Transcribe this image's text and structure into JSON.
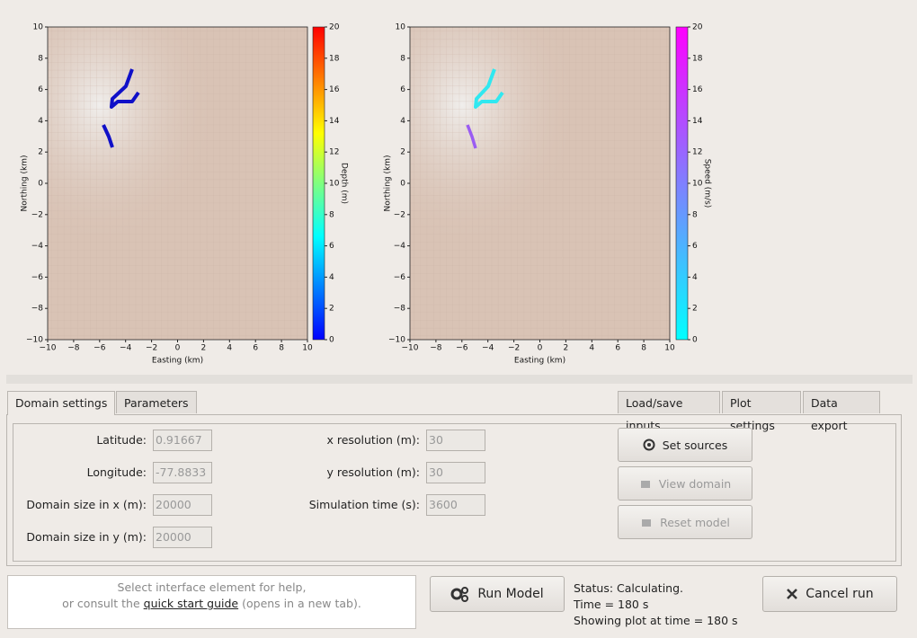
{
  "plots": [
    {
      "xlabel": "Easting (km)",
      "ylabel": "Northing (km)",
      "colorbar_label": "Depth (m)",
      "xlim": [
        -10,
        10
      ],
      "ylim": [
        -10,
        10
      ],
      "xticks": [
        {
          "value": -10,
          "label": "−10"
        },
        {
          "value": -8,
          "label": "−8"
        },
        {
          "value": -6,
          "label": "−6"
        },
        {
          "value": -4,
          "label": "−4"
        },
        {
          "value": -2,
          "label": "−2"
        },
        0,
        2,
        4,
        6,
        8,
        10
      ],
      "yticks": [
        {
          "value": -10,
          "label": "−10"
        },
        {
          "value": -8,
          "label": "−8"
        },
        {
          "value": -6,
          "label": "−6"
        },
        {
          "value": -4,
          "label": "−4"
        },
        {
          "value": -2,
          "label": "−2"
        },
        0,
        2,
        4,
        6,
        8,
        10
      ],
      "clim": [
        0,
        20
      ],
      "cticks": [
        0,
        2,
        4,
        6,
        8,
        10,
        12,
        14,
        16,
        18,
        20
      ]
    },
    {
      "xlabel": "Easting (km)",
      "ylabel": "Northing (km)",
      "colorbar_label": "Speed (m/s)",
      "xlim": [
        -10,
        10
      ],
      "ylim": [
        -10,
        10
      ],
      "xticks": [
        {
          "value": -10,
          "label": "−10"
        },
        {
          "value": -8,
          "label": "−8"
        },
        {
          "value": -6,
          "label": "−6"
        },
        {
          "value": -4,
          "label": "−4"
        },
        {
          "value": -2,
          "label": "−2"
        },
        0,
        2,
        4,
        6,
        8,
        10
      ],
      "yticks": [
        {
          "value": -10,
          "label": "−10"
        },
        {
          "value": -8,
          "label": "−8"
        },
        {
          "value": -6,
          "label": "−6"
        },
        {
          "value": -4,
          "label": "−4"
        },
        {
          "value": -2,
          "label": "−2"
        },
        0,
        2,
        4,
        6,
        8,
        10
      ],
      "clim": [
        0,
        20
      ],
      "cticks": [
        0,
        2,
        4,
        6,
        8,
        10,
        12,
        14,
        16,
        18,
        20
      ]
    }
  ],
  "tabs_left": [
    "Domain settings",
    "Parameters"
  ],
  "tabs_right": [
    "Load/save inputs",
    "Plot settings",
    "Data export"
  ],
  "fields_left": [
    {
      "label": "Latitude:",
      "value": 0.91667
    },
    {
      "label": "Longitude:",
      "value": -77.8833
    },
    {
      "label": "Domain size in x (m):",
      "value": 20000
    },
    {
      "label": "Domain size in y (m):",
      "value": 20000
    }
  ],
  "fields_right": [
    {
      "label": "x resolution (m):",
      "value": 30
    },
    {
      "label": "y resolution (m):",
      "value": 30
    },
    {
      "label": "Simulation time (s):",
      "value": 3600
    }
  ],
  "buttons": [
    "Set sources",
    "View domain",
    "Reset model"
  ],
  "help": {
    "line1": "Select interface element for help,",
    "pre": "or consult the",
    "link": "quick start guide",
    "post": "(opens in a new tab)."
  },
  "run_button": "Run Model",
  "status": [
    "Status: Calculating.",
    "Time = 180 s",
    "Showing plot at time = 180 s"
  ],
  "cancel_button": "Cancel run"
}
